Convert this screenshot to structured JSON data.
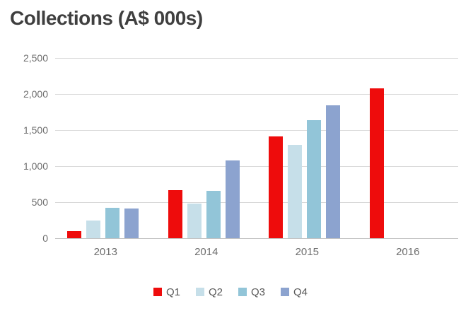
{
  "title": "Collections (A$ 000s)",
  "colors": {
    "q1_red": "#ee0c0c",
    "q2_pale_blue": "#c6dfe9",
    "q3_light_blue": "#92c5d8",
    "q4_blue_gray": "#8ca3cf",
    "gridline": "#d9d9d9",
    "axis_line": "#c3c3c3",
    "tick_text": "#6e6e6e",
    "title_text": "#3f3f3f"
  },
  "chart_data": {
    "type": "bar",
    "title": "Collections (A$ 000s)",
    "categories": [
      "2013",
      "2014",
      "2015",
      "2016"
    ],
    "series": [
      {
        "name": "Q1",
        "color": "#ee0c0c",
        "values": [
          100,
          670,
          1410,
          2080
        ]
      },
      {
        "name": "Q2",
        "color": "#c6dfe9",
        "values": [
          250,
          480,
          1290,
          null
        ]
      },
      {
        "name": "Q3",
        "color": "#92c5d8",
        "values": [
          420,
          660,
          1635,
          null
        ]
      },
      {
        "name": "Q4",
        "color": "#8ca3cf",
        "values": [
          410,
          1080,
          1840,
          null
        ]
      }
    ],
    "xlabel": "",
    "ylabel": "",
    "ylim": [
      0,
      2500
    ],
    "ytick_interval": 500,
    "ytick_labels": [
      "0",
      "500",
      "1,000",
      "1,500",
      "2,000",
      "2,500"
    ],
    "grid": true,
    "legend_position": "bottom",
    "legend_entries": [
      "Q1",
      "Q2",
      "Q3",
      "Q4"
    ]
  }
}
